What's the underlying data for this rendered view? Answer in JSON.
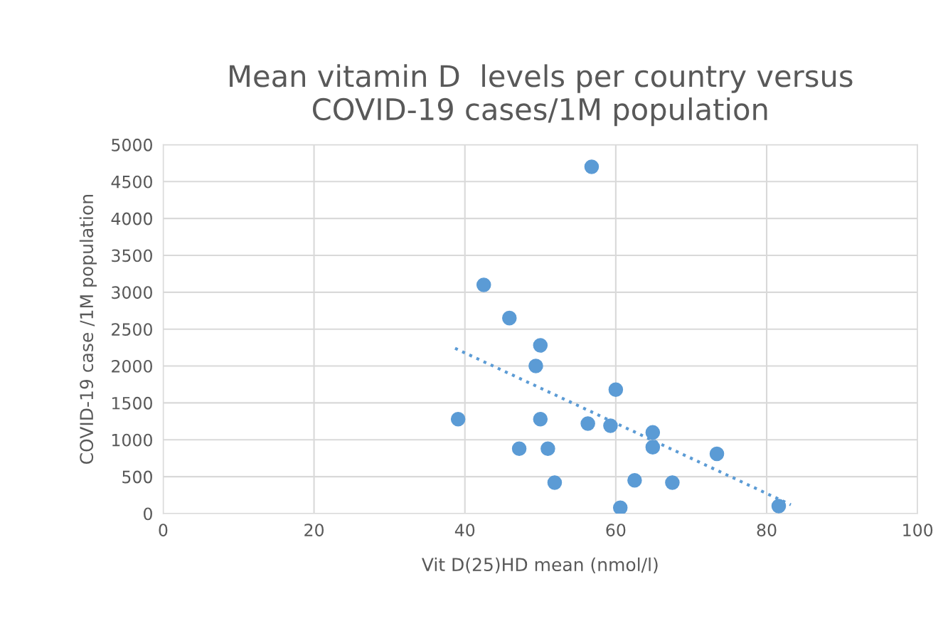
{
  "chart_data": {
    "type": "scatter",
    "title": "Mean vitamin D  levels per country versus\nCOVID-19 cases/1M population",
    "xlabel": "Vit D(25)HD mean (nmol/l)",
    "ylabel": "COVID-19 case /1M population",
    "xlim": [
      0,
      100
    ],
    "xticks": [
      0,
      20,
      40,
      60,
      80,
      100
    ],
    "ylim": [
      0,
      5000
    ],
    "yticks": [
      0,
      500,
      1000,
      1500,
      2000,
      2500,
      3000,
      3500,
      4000,
      4500,
      5000
    ],
    "grid": true,
    "marker": "circle",
    "series": [
      {
        "color": "#5b9bd5",
        "x": [
          56.8,
          42.5,
          45.9,
          50.0,
          49.4,
          60.0,
          39.1,
          50.0,
          56.3,
          59.3,
          64.9,
          64.9,
          47.2,
          51.0,
          73.4,
          51.9,
          62.5,
          67.5,
          60.6,
          81.6
        ],
        "values": [
          4700,
          3100,
          2650,
          2280,
          2000,
          1680,
          1280,
          1280,
          1220,
          1190,
          1100,
          900,
          880,
          880,
          810,
          420,
          450,
          420,
          80,
          100
        ]
      },
      {
        "type": "line",
        "color": "#5b9bd5",
        "line_style": "dotted",
        "marker": "none",
        "x": [
          38.7,
          83.2
        ],
        "values": [
          2240,
          120
        ]
      }
    ]
  }
}
